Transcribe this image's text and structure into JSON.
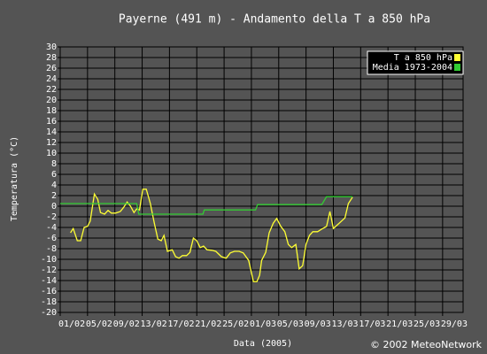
{
  "chart_data": {
    "type": "line",
    "title": "Payerne (491 m) - Andamento della T a 850 hPa",
    "x_label": "Data (2005)",
    "y_label": "Temperatura (°C)",
    "credit": "© 2002 MeteoNetwork",
    "xlim": [
      0,
      59
    ],
    "xticks": [
      {
        "value": 0,
        "label": "01/02"
      },
      {
        "value": 4,
        "label": "05/02"
      },
      {
        "value": 8,
        "label": "09/02"
      },
      {
        "value": 12,
        "label": "13/02"
      },
      {
        "value": 16,
        "label": "17/02"
      },
      {
        "value": 20,
        "label": "21/02"
      },
      {
        "value": 24,
        "label": "25/02"
      },
      {
        "value": 28,
        "label": "01/03"
      },
      {
        "value": 32,
        "label": "05/03"
      },
      {
        "value": 36,
        "label": "09/03"
      },
      {
        "value": 40,
        "label": "13/03"
      },
      {
        "value": 44,
        "label": "17/03"
      },
      {
        "value": 48,
        "label": "21/03"
      },
      {
        "value": 52,
        "label": "25/03"
      },
      {
        "value": 56,
        "label": "29/03"
      }
    ],
    "ylim": [
      -20,
      30
    ],
    "yticks": [
      -20,
      -18,
      -16,
      -14,
      -12,
      -10,
      -8,
      -6,
      -4,
      -2,
      0,
      2,
      4,
      6,
      8,
      10,
      12,
      14,
      16,
      18,
      20,
      22,
      24,
      26,
      28,
      30
    ],
    "grid": true,
    "legend": "top-right",
    "series": [
      {
        "name": "T a 850 hPa",
        "color": "#ffff33",
        "x": [
          1.5,
          1.9,
          2.5,
          3.0,
          3.5,
          4.0,
          4.4,
          5.0,
          5.5,
          5.9,
          6.5,
          7.0,
          7.5,
          8.1,
          8.8,
          9.3,
          9.8,
          10.3,
          10.8,
          11.2,
          11.6,
          12.1,
          12.6,
          13.2,
          13.8,
          14.3,
          14.8,
          15.2,
          15.7,
          16.4,
          16.9,
          17.4,
          17.9,
          18.5,
          19.0,
          19.5,
          20.0,
          20.5,
          21.0,
          21.5,
          22.2,
          22.8,
          23.6,
          24.3,
          24.9,
          25.5,
          26.2,
          26.8,
          27.6,
          28.3,
          28.8,
          29.2,
          29.5,
          30.1,
          30.6,
          31.2,
          31.7,
          32.3,
          32.9,
          33.4,
          33.9,
          34.5,
          35.0,
          35.5,
          36.0,
          36.5,
          37.0,
          37.7,
          38.3,
          39.0,
          39.5,
          40.0,
          40.6,
          41.2,
          41.7,
          42.2,
          42.8
        ],
        "values": [
          -5,
          -4.2,
          -6.5,
          -6.5,
          -4,
          -3.8,
          -2.8,
          2.3,
          1.3,
          -1.2,
          -1.5,
          -0.8,
          -1.3,
          -1.3,
          -1,
          -0.2,
          0.8,
          0,
          -1.2,
          -0.5,
          -0.7,
          3.2,
          3.2,
          0.5,
          -3.3,
          -6.2,
          -6.5,
          -5.5,
          -8.5,
          -8.2,
          -9.5,
          -9.8,
          -9.3,
          -9.3,
          -8.7,
          -6,
          -6.5,
          -7.8,
          -7.5,
          -8.2,
          -8.3,
          -8.5,
          -9.5,
          -9.8,
          -8.8,
          -8.5,
          -8.5,
          -8.8,
          -10.2,
          -14.2,
          -14.2,
          -13,
          -10.2,
          -8.7,
          -5,
          -3.2,
          -2.3,
          -3.8,
          -4.8,
          -7.2,
          -7.8,
          -7.2,
          -11.8,
          -11.2,
          -7.2,
          -5.5,
          -4.8,
          -4.8,
          -4.3,
          -3.8,
          -1,
          -4.2,
          -3.5,
          -2.8,
          -2.2,
          0.5,
          1.7
        ]
      },
      {
        "name": "Media 1973-2004",
        "color": "#33cc33",
        "x": [
          0,
          11.2,
          11.5,
          20.9,
          21.1,
          28.6,
          28.9,
          38.3,
          39.0,
          42.8
        ],
        "values": [
          0.5,
          0.5,
          -1.5,
          -1.5,
          -0.7,
          -0.7,
          0.3,
          0.3,
          1.8,
          1.8
        ]
      }
    ]
  }
}
